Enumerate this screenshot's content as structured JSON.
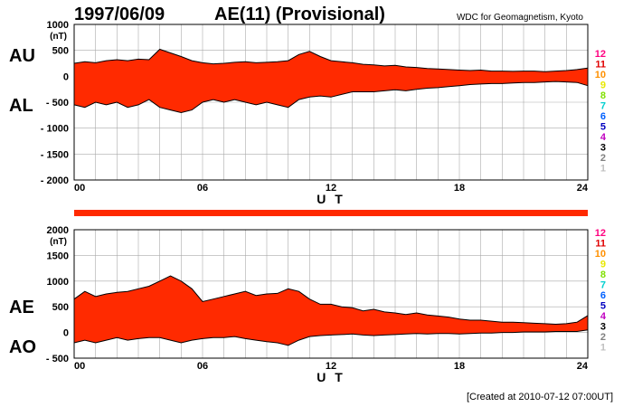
{
  "header": {
    "date": "1997/06/09",
    "title": "AE(11) (Provisional)",
    "source": "WDC for Geomagnetism, Kyoto"
  },
  "footer": {
    "created": "[Created at 2010-07-12 07:00UT]"
  },
  "colors": {
    "fill": "#ff2a00",
    "outline": "#000000",
    "grid": "#aaaaaa"
  },
  "legend": {
    "labels": [
      "12",
      "11",
      "10",
      "9",
      "8",
      "7",
      "6",
      "5",
      "4",
      "3",
      "2",
      "1"
    ],
    "colors": [
      "#ff0080",
      "#e00000",
      "#ff9000",
      "#e8e800",
      "#80e000",
      "#00d0d0",
      "#0060ff",
      "#0000c0",
      "#c000c0",
      "#000000",
      "#808080",
      "#c0c0c0"
    ]
  },
  "chart_data": [
    {
      "type": "area",
      "panel": "AU/AL",
      "series_labels": [
        "AU",
        "AL"
      ],
      "unit": "(nT)",
      "xlabel": "U T",
      "x_ticks": [
        "00",
        "06",
        "12",
        "18",
        "24"
      ],
      "xlim": [
        0,
        24
      ],
      "ylim": [
        -2000,
        1000
      ],
      "y_ticks": [
        1000,
        500,
        0,
        -500,
        -1000,
        -1500,
        -2000
      ],
      "y_tick_labels": [
        "1000",
        "500",
        "0",
        "- 500",
        "- 1000",
        "- 1500",
        "- 2000"
      ],
      "x": [
        0,
        0.5,
        1,
        1.5,
        2,
        2.5,
        3,
        3.5,
        4,
        4.5,
        5,
        5.5,
        6,
        6.5,
        7,
        7.5,
        8,
        8.5,
        9,
        9.5,
        10,
        10.5,
        11,
        11.5,
        12,
        12.5,
        13,
        13.5,
        14,
        14.5,
        15,
        15.5,
        16,
        16.5,
        17,
        17.5,
        18,
        18.5,
        19,
        19.5,
        20,
        20.5,
        21,
        21.5,
        22,
        22.5,
        23,
        23.5,
        24
      ],
      "upper": [
        250,
        280,
        260,
        300,
        320,
        300,
        330,
        320,
        520,
        450,
        380,
        300,
        260,
        240,
        250,
        270,
        280,
        260,
        270,
        280,
        300,
        420,
        480,
        380,
        300,
        280,
        260,
        230,
        220,
        200,
        210,
        180,
        170,
        150,
        140,
        130,
        120,
        110,
        120,
        100,
        100,
        95,
        100,
        100,
        90,
        100,
        110,
        130,
        160
      ],
      "lower": [
        -550,
        -600,
        -500,
        -550,
        -500,
        -600,
        -550,
        -450,
        -600,
        -650,
        -700,
        -650,
        -500,
        -450,
        -500,
        -450,
        -500,
        -550,
        -500,
        -550,
        -600,
        -450,
        -400,
        -380,
        -400,
        -350,
        -300,
        -300,
        -300,
        -280,
        -260,
        -280,
        -250,
        -230,
        -220,
        -200,
        -180,
        -160,
        -150,
        -140,
        -140,
        -130,
        -120,
        -120,
        -110,
        -100,
        -110,
        -120,
        -180
      ]
    },
    {
      "type": "area",
      "panel": "AE/AO",
      "series_labels": [
        "AE",
        "AO"
      ],
      "unit": "(nT)",
      "xlabel": "U T",
      "x_ticks": [
        "00",
        "06",
        "12",
        "18",
        "24"
      ],
      "xlim": [
        0,
        24
      ],
      "ylim": [
        -500,
        2000
      ],
      "y_ticks": [
        2000,
        1500,
        1000,
        500,
        0,
        -500
      ],
      "y_tick_labels": [
        "2000",
        "1500",
        "1000",
        "500",
        "0",
        "- 500"
      ],
      "x": [
        0,
        0.5,
        1,
        1.5,
        2,
        2.5,
        3,
        3.5,
        4,
        4.5,
        5,
        5.5,
        6,
        6.5,
        7,
        7.5,
        8,
        8.5,
        9,
        9.5,
        10,
        10.5,
        11,
        11.5,
        12,
        12.5,
        13,
        13.5,
        14,
        14.5,
        15,
        15.5,
        16,
        16.5,
        17,
        17.5,
        18,
        18.5,
        19,
        19.5,
        20,
        20.5,
        21,
        21.5,
        22,
        22.5,
        23,
        23.5,
        24
      ],
      "upper": [
        650,
        800,
        700,
        750,
        780,
        800,
        850,
        900,
        1000,
        1100,
        1000,
        850,
        600,
        650,
        700,
        750,
        800,
        720,
        750,
        760,
        850,
        800,
        650,
        550,
        550,
        500,
        480,
        420,
        450,
        400,
        380,
        350,
        380,
        340,
        320,
        300,
        260,
        240,
        240,
        220,
        200,
        200,
        190,
        180,
        170,
        160,
        170,
        200,
        330
      ],
      "lower": [
        -200,
        -150,
        -200,
        -150,
        -100,
        -150,
        -120,
        -100,
        -100,
        -150,
        -200,
        -150,
        -120,
        -100,
        -100,
        -80,
        -120,
        -150,
        -180,
        -200,
        -250,
        -150,
        -80,
        -60,
        -50,
        -40,
        -30,
        -50,
        -60,
        -50,
        -40,
        -30,
        -20,
        -30,
        -20,
        -20,
        -30,
        -20,
        -10,
        -10,
        0,
        0,
        10,
        10,
        10,
        20,
        20,
        20,
        50
      ]
    }
  ]
}
